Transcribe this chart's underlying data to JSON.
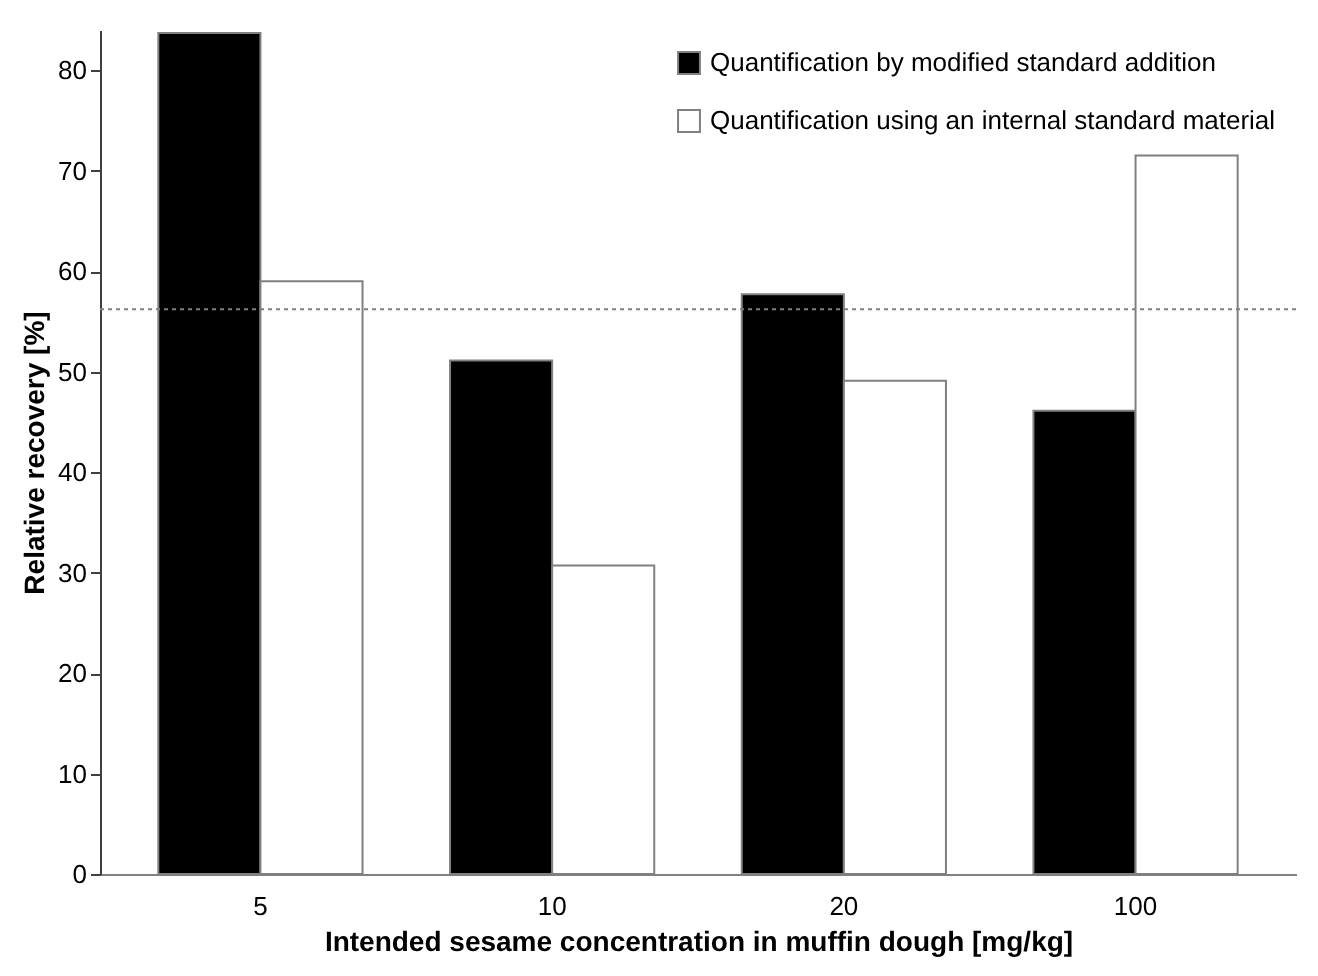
{
  "chart_data": {
    "type": "bar",
    "xlabel": "Intended sesame concentration in muffin dough [mg/kg]",
    "ylabel": "Relative recovery [%]",
    "categories": [
      "5",
      "10",
      "20",
      "100"
    ],
    "series": [
      {
        "name": "Quantification by modified standard addition",
        "color": "#000000",
        "values": [
          83.7,
          51.1,
          57.7,
          46.1
        ]
      },
      {
        "name": "Quantification using an internal standard material",
        "color": "#ffffff",
        "values": [
          59.0,
          30.7,
          49.1,
          71.5
        ]
      }
    ],
    "ylim": [
      0,
      84
    ],
    "yticks": [
      0,
      10,
      20,
      30,
      40,
      50,
      60,
      70,
      80
    ],
    "ref_lines": [
      {
        "axis": "y",
        "value": 56.2,
        "color": "#808080",
        "line_style": "dotted"
      }
    ],
    "legend": "top right",
    "grid": false
  }
}
